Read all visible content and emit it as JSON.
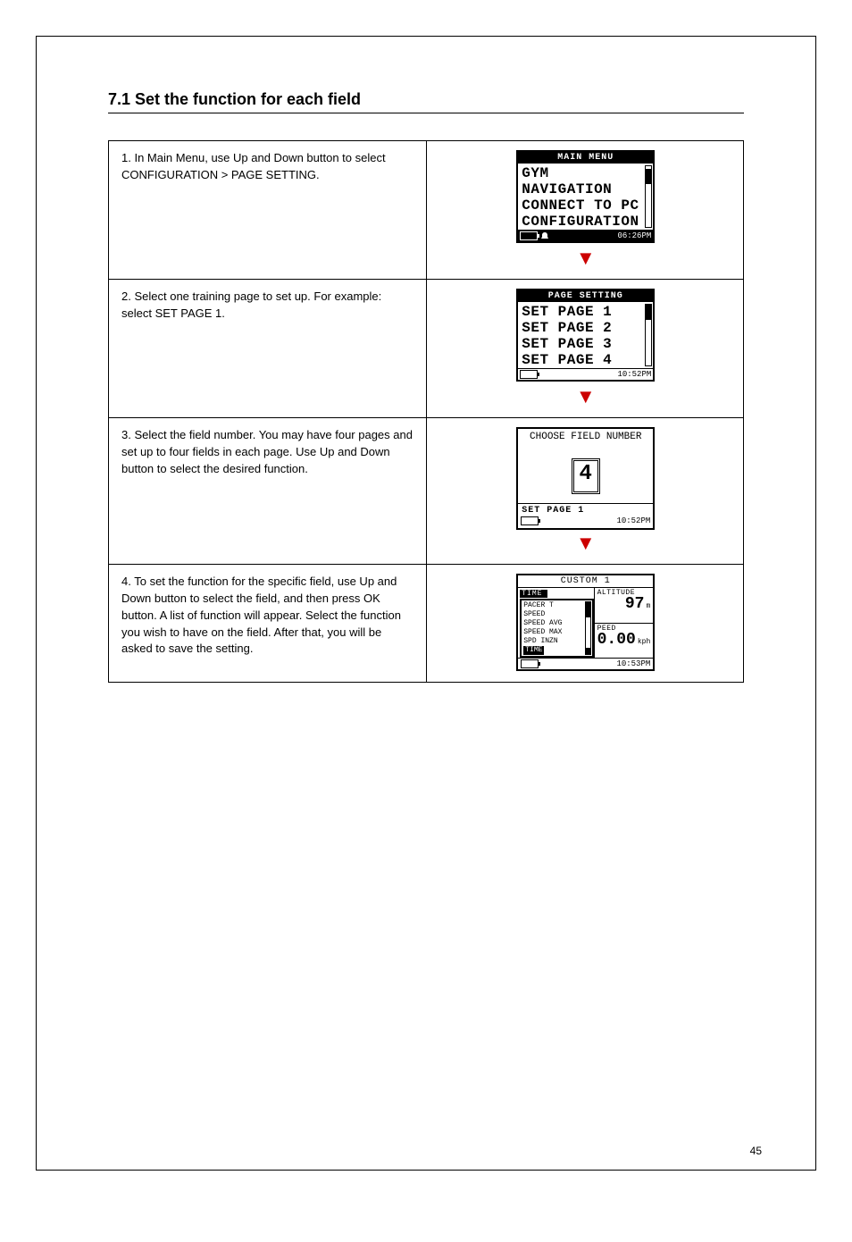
{
  "page_number": "45",
  "section_title": "7.1 Set the function for each field",
  "rows": [
    {
      "step": "1.",
      "text": "In Main Menu, use Up and Down button to select CONFIGURATION > PAGE SETTING.",
      "screen": {
        "type": "menu",
        "header": "MAIN MENU",
        "items": [
          "GYM",
          "NAVIGATION",
          "CONNECT TO PC",
          "CONFIGURATION"
        ],
        "selected_index": 3,
        "status_bg": "black",
        "show_bell": true,
        "time": "06:26PM",
        "battery_fill": 0.5,
        "thumb_pos": "mid"
      }
    },
    {
      "step": "2.",
      "text": "Select one training page to set up. For example: select SET PAGE 1.",
      "screen": {
        "type": "menu",
        "header": "PAGE SETTING",
        "items": [
          "SET PAGE 1",
          "SET PAGE 2",
          "SET PAGE 3",
          "SET PAGE 4"
        ],
        "selected_index": 0,
        "status_bg": "white",
        "show_bell": false,
        "time": "10:52PM",
        "battery_fill": 0.7,
        "thumb_pos": "top"
      }
    },
    {
      "step": "3.",
      "text": "Select the field number. You may have four pages and set up to four fields in each page. Use Up and Down button to select the desired function.",
      "screen": {
        "type": "choose",
        "title": "CHOOSE FIELD NUMBER",
        "value": "4",
        "footer": "SET PAGE 1",
        "time": "10:52PM",
        "battery_fill": 0.7
      }
    },
    {
      "step": "4.",
      "text": "To set the function for the specific field, use Up and Down button to select the field, and then press OK button. A list of function will appear. Select the function you wish to have on the field. After that, you will be asked to save the setting.",
      "screen": {
        "type": "custom",
        "header": "CUSTOM 1",
        "left_top_label": "TIME",
        "right_top_label": "ALTITUDE",
        "popup_items": [
          "PACER T",
          "SPEED",
          "SPEED AVG",
          "SPEED MAX",
          "SPD INZN",
          "TIME"
        ],
        "popup_selected_index": 5,
        "altitude_value": "97",
        "altitude_unit": "m",
        "speed_label": "PEED",
        "speed_value": "0.00",
        "speed_unit": "kph",
        "time": "10:53PM",
        "battery_fill": 0.7
      }
    }
  ]
}
